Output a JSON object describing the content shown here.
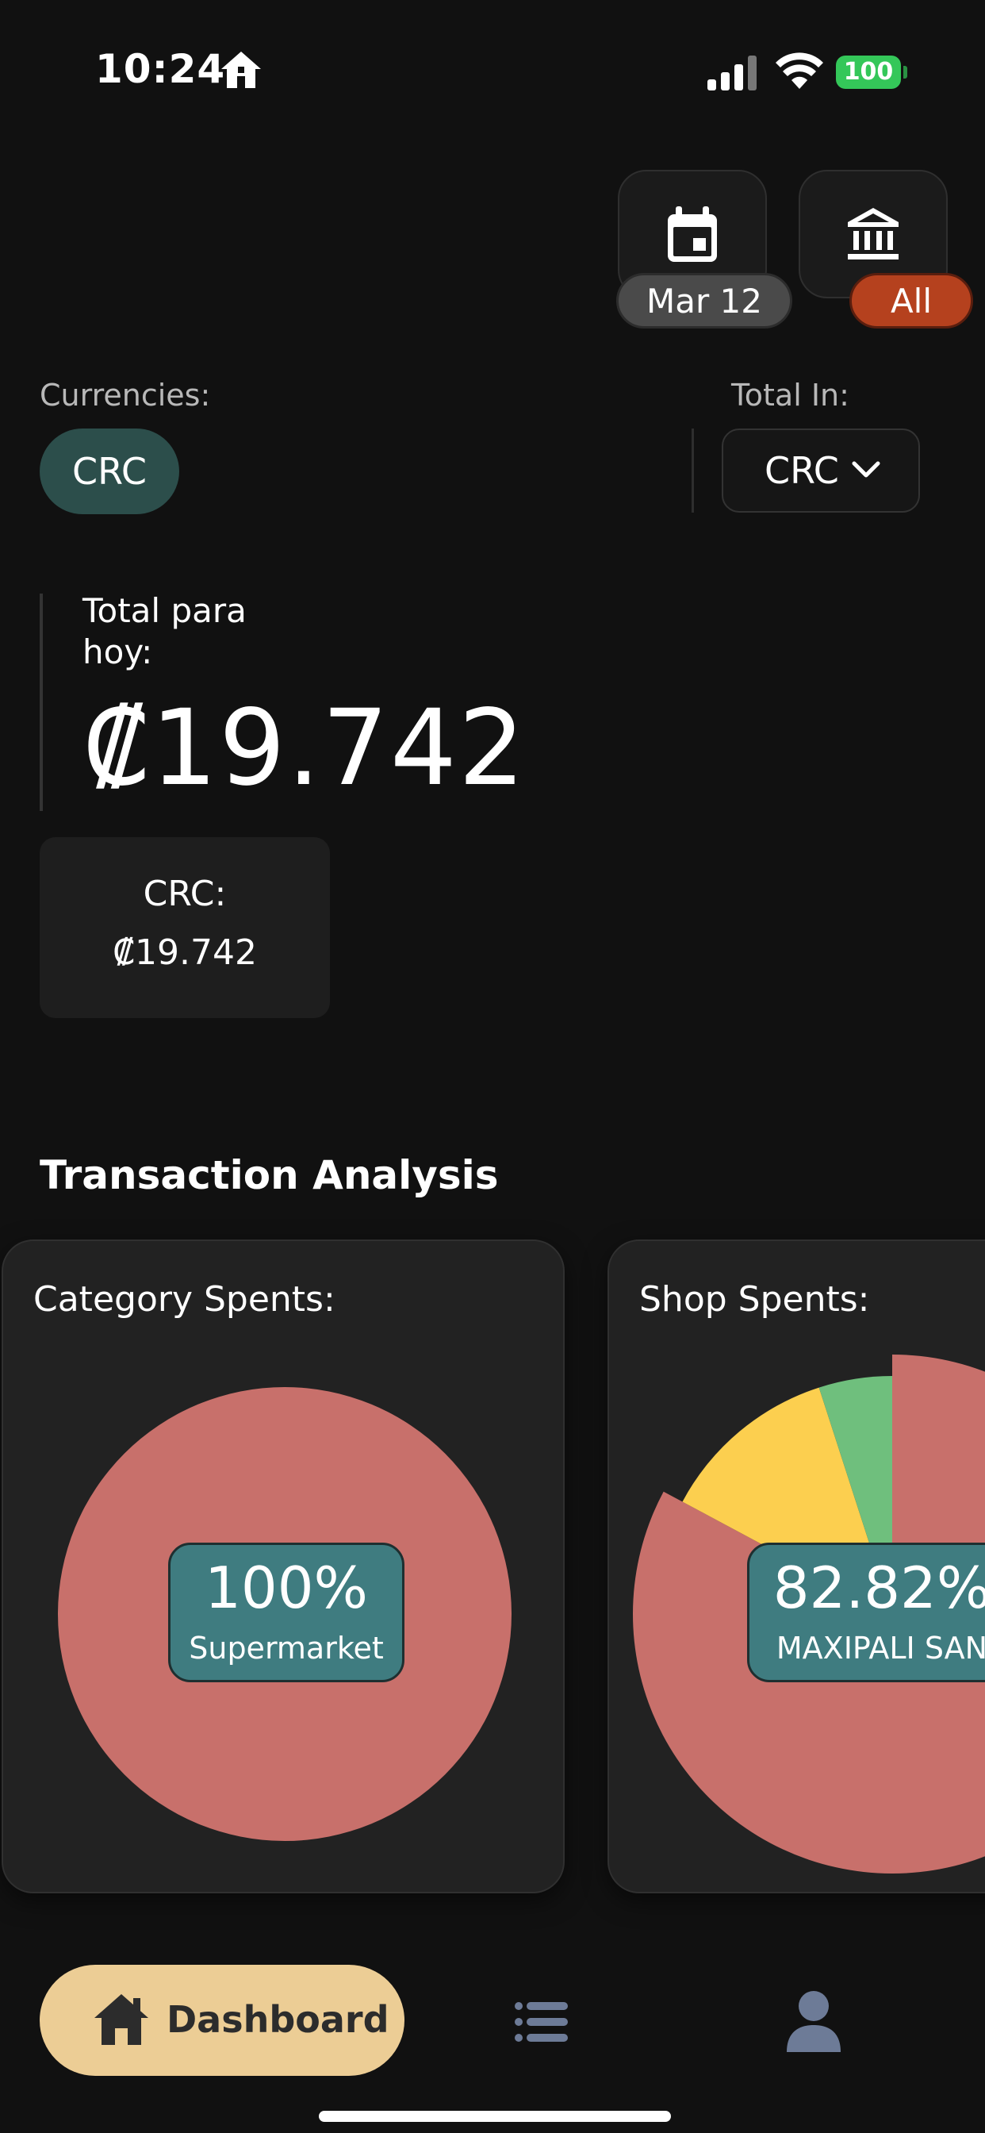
{
  "status_bar": {
    "time": "10:24",
    "battery": "100"
  },
  "header": {
    "date_pill": "Mar 12",
    "bank_pill": "All",
    "colors": {
      "bank_pill": "#b5411e",
      "date_pill": "#4a4a4a"
    }
  },
  "currencies": {
    "label": "Currencies:",
    "chips": [
      "CRC"
    ]
  },
  "total_in": {
    "label": "Total In:",
    "selected": "CRC"
  },
  "total": {
    "label": "Total para hoy:",
    "value": "₡19.742"
  },
  "breakdown": [
    {
      "currency": "CRC:",
      "amount": "₡19.742"
    }
  ],
  "analysis": {
    "title": "Transaction Analysis",
    "cards": [
      {
        "title": "Category Spents:",
        "center_percent": "100%",
        "center_label": "Supermarket"
      },
      {
        "title": "Shop Spents:",
        "center_percent": "82.82%",
        "center_label": "MAXIPALI SAN"
      }
    ]
  },
  "chart_data": [
    {
      "type": "pie",
      "title": "Category Spents:",
      "categories": [
        "Supermarket"
      ],
      "values": [
        100
      ],
      "colors": [
        "#c8706b"
      ]
    },
    {
      "type": "pie",
      "title": "Shop Spents:",
      "categories": [
        "MAXIPALI SAN",
        "",
        ""
      ],
      "values": [
        82.82,
        12.2,
        4.98
      ],
      "colors": [
        "#c8706b",
        "#fccf4f",
        "#6fbf7d"
      ]
    }
  ],
  "bottom_nav": {
    "dashboard_label": "Dashboard",
    "active_color": "#eccd95"
  }
}
